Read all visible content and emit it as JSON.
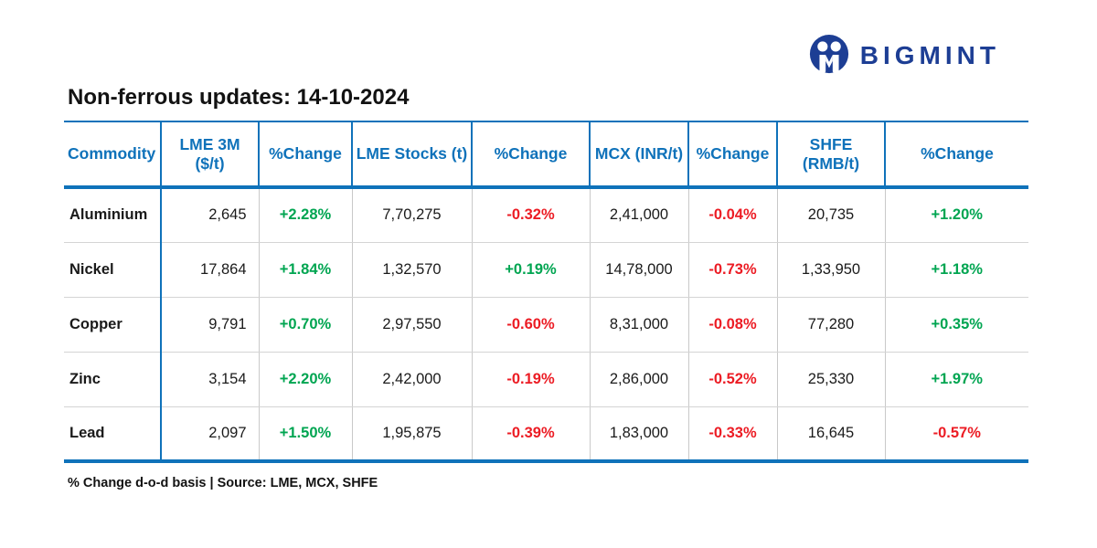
{
  "brand": {
    "name": "BIGMINT"
  },
  "title": "Non-ferrous updates: 14-10-2024",
  "footer_note": "% Change d-o-d basis | Source: LME, MCX, SHFE",
  "colors": {
    "accent_blue": "#0f72ba",
    "logo_navy": "#1d3e94",
    "positive_green": "#00a551",
    "negative_red": "#ec1c24",
    "text_ink": "#1a1a1a",
    "grid_gray": "#c9c9c9"
  },
  "chart_data": {
    "type": "table",
    "title": "Non-ferrous updates: 14-10-2024",
    "columns": [
      "Commodity",
      "LME 3M ($/t)",
      "%Change",
      "LME Stocks (t)",
      "%Change",
      "MCX (INR/t)",
      "%Change",
      "SHFE (RMB/t)",
      "%Change"
    ],
    "rows": [
      [
        "Aluminium",
        "2,645",
        "+2.28%",
        "7,70,275",
        "-0.32%",
        "2,41,000",
        "-0.04%",
        "20,735",
        "+1.20%"
      ],
      [
        "Nickel",
        "17,864",
        "+1.84%",
        "1,32,570",
        "+0.19%",
        "14,78,000",
        "-0.73%",
        "1,33,950",
        "+1.18%"
      ],
      [
        "Copper",
        "9,791",
        "+0.70%",
        "2,97,550",
        "-0.60%",
        "8,31,000",
        "-0.08%",
        "77,280",
        "+0.35%"
      ],
      [
        "Zinc",
        "3,154",
        "+2.20%",
        "2,42,000",
        "-0.19%",
        "2,86,000",
        "-0.52%",
        "25,330",
        "+1.97%"
      ],
      [
        "Lead",
        "2,097",
        "+1.50%",
        "1,95,875",
        "-0.39%",
        "1,83,000",
        "-0.33%",
        "16,645",
        "-0.57%"
      ]
    ]
  }
}
